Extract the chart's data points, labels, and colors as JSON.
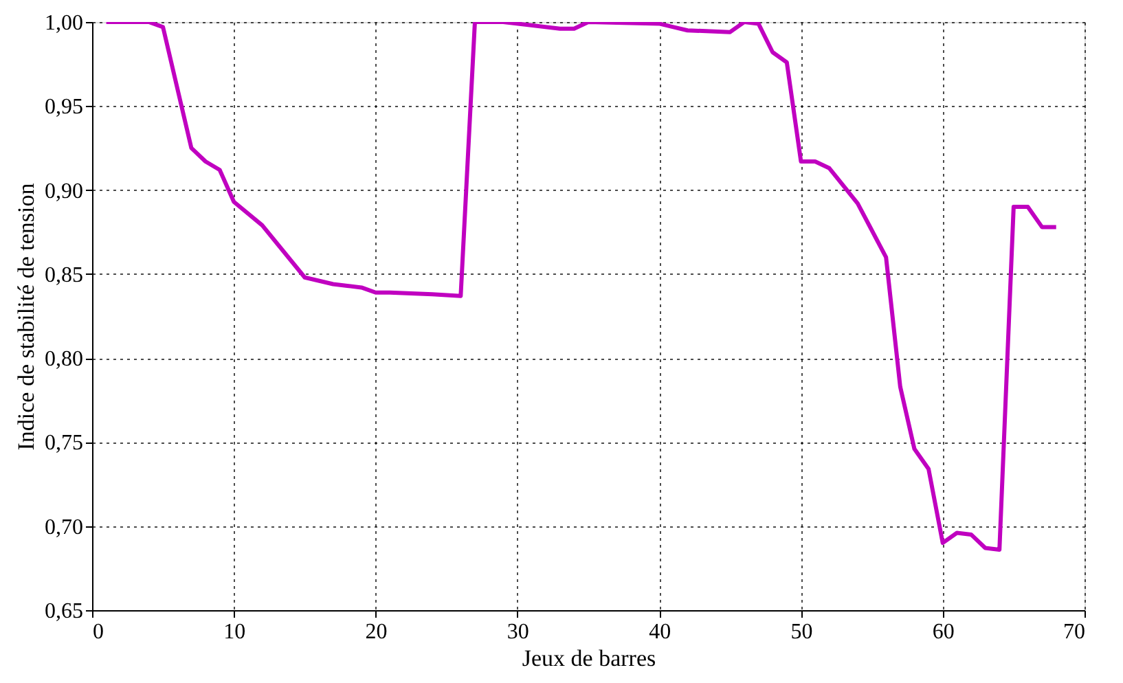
{
  "chart_data": {
    "type": "line",
    "xlabel": "Jeux de barres",
    "ylabel": "Indice de stabilité de tension",
    "x": [
      1,
      4,
      5,
      7,
      8,
      9,
      10,
      12,
      15,
      17,
      18,
      19,
      20,
      21,
      24,
      26,
      27,
      29,
      33,
      34,
      35,
      40,
      41,
      42,
      45,
      46,
      47,
      48,
      49,
      50,
      51,
      52,
      54,
      56,
      57,
      58,
      59,
      60,
      61,
      62,
      63,
      64,
      65,
      66,
      67,
      68
    ],
    "series": [
      {
        "color": "#c000c0",
        "values": [
          1.0,
          1.0,
          0.997,
          0.925,
          0.917,
          0.912,
          0.893,
          0.879,
          0.848,
          0.844,
          0.843,
          0.842,
          0.839,
          0.839,
          0.838,
          0.837,
          1.0,
          1.0,
          0.996,
          0.996,
          1.0,
          0.999,
          0.997,
          0.995,
          0.994,
          1.0,
          0.999,
          0.982,
          0.976,
          0.917,
          0.917,
          0.913,
          0.892,
          0.86,
          0.783,
          0.746,
          0.734,
          0.69,
          0.696,
          0.695,
          0.687,
          0.686,
          0.89,
          0.89,
          0.878,
          0.878
        ]
      }
    ],
    "xlim": [
      0,
      70
    ],
    "xticks": [
      0,
      10,
      20,
      30,
      40,
      50,
      60,
      70
    ],
    "ylim": [
      0.65,
      1.0
    ],
    "yticks": [
      {
        "value": 0.65,
        "label": "0,65"
      },
      {
        "value": 0.7,
        "label": "0,70"
      },
      {
        "value": 0.75,
        "label": "0,75"
      },
      {
        "value": 0.8,
        "label": "0,80"
      },
      {
        "value": 0.85,
        "label": "0,85"
      },
      {
        "value": 0.9,
        "label": "0,90"
      },
      {
        "value": 0.95,
        "label": "0,95"
      },
      {
        "value": 1.0,
        "label": "1,00"
      }
    ],
    "grid": true,
    "line_style": "solid"
  }
}
